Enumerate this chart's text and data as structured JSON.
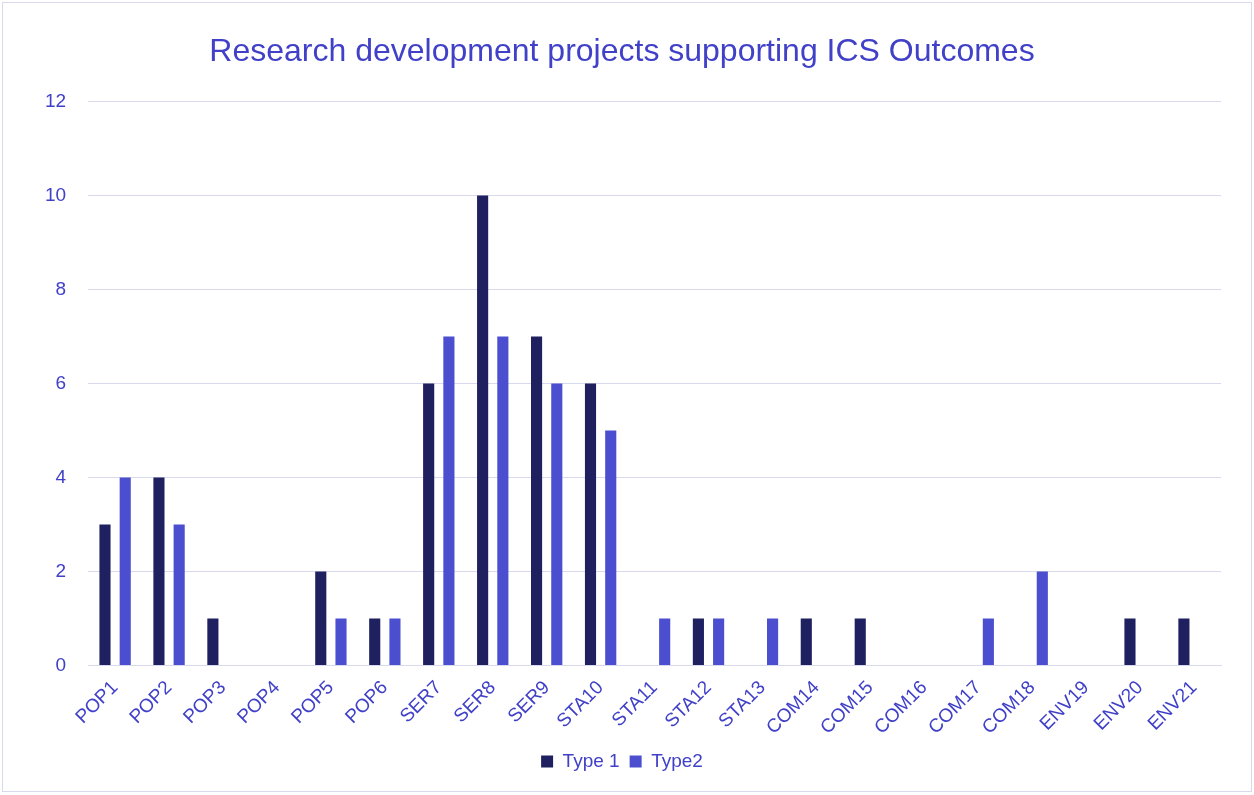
{
  "chart_data": {
    "type": "bar",
    "title": "Research development projects supporting ICS Outcomes",
    "categories": [
      "POP1",
      "POP2",
      "POP3",
      "POP4",
      "POP5",
      "POP6",
      "SER7",
      "SER8",
      "SER9",
      "STA10",
      "STA11",
      "STA12",
      "STA13",
      "COM14",
      "COM15",
      "COM16",
      "COM17",
      "COM18",
      "ENV19",
      "ENV20",
      "ENV21"
    ],
    "series": [
      {
        "name": "Type 1",
        "color": "#1f2060",
        "values": [
          3,
          4,
          1,
          0,
          2,
          1,
          6,
          10,
          7,
          6,
          0,
          1,
          0,
          1,
          1,
          0,
          0,
          0,
          0,
          1,
          1
        ]
      },
      {
        "name": "Type2",
        "color": "#4b4fcf",
        "values": [
          4,
          3,
          0,
          0,
          1,
          1,
          7,
          7,
          6,
          5,
          1,
          1,
          1,
          0,
          0,
          0,
          1,
          2,
          0,
          0,
          0
        ]
      }
    ],
    "ylim": [
      0,
      12
    ],
    "yticks": [
      0,
      2,
      4,
      6,
      8,
      10,
      12
    ],
    "grid": "y",
    "legend": "bottom"
  }
}
